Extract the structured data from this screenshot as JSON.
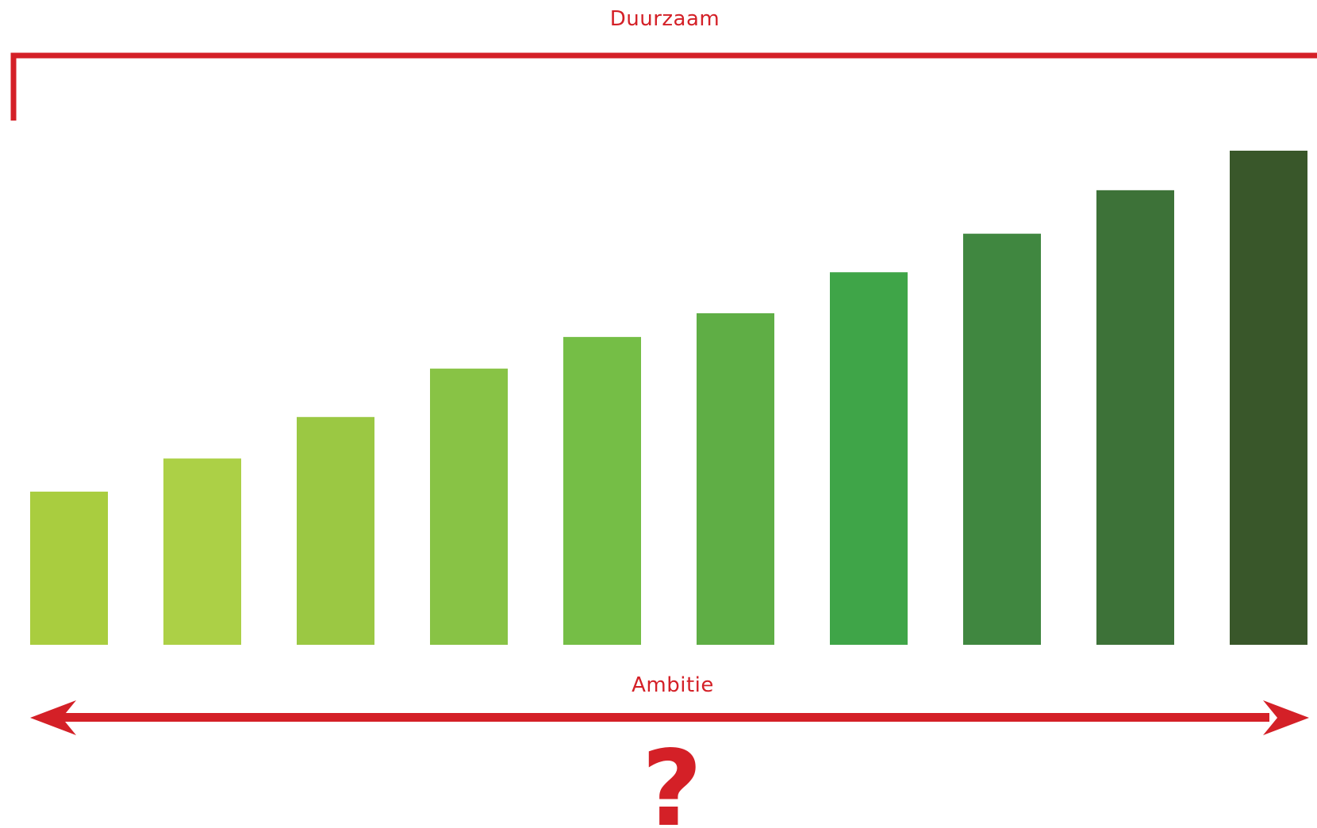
{
  "labels": {
    "top": "Duurzaam",
    "bottom": "Ambitie",
    "question": "?"
  },
  "colors": {
    "accent": "#d42027",
    "bars": [
      "#a9cd3f",
      "#acd046",
      "#9bc843",
      "#88c345",
      "#75be46",
      "#5fae45",
      "#3fa548",
      "#408740",
      "#3d7238",
      "#39572a"
    ]
  },
  "bars": {
    "relative_heights": [
      0.31,
      0.377,
      0.461,
      0.559,
      0.623,
      0.671,
      0.754,
      0.832,
      0.92,
      1.0
    ]
  }
}
